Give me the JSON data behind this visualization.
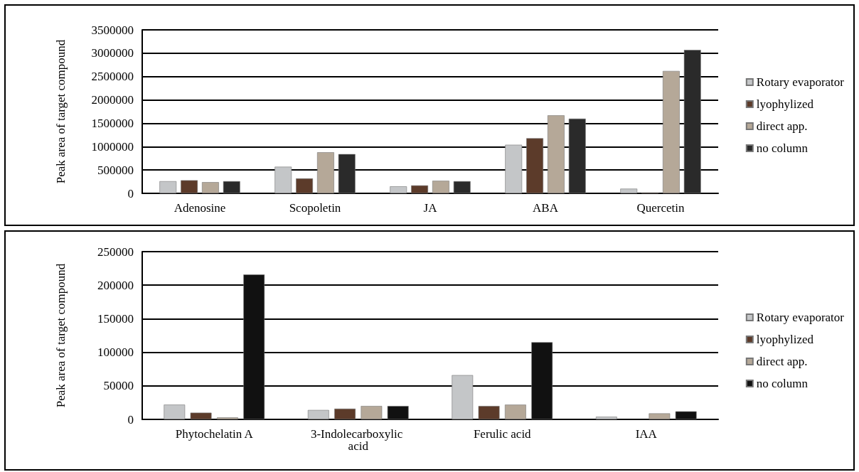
{
  "chart_data": [
    {
      "type": "bar",
      "ylabel": "Peak area of target compound",
      "categories": [
        "Adenosine",
        "Scopoletin",
        "JA",
        "ABA",
        "Quercetin"
      ],
      "series": [
        {
          "name": "Rotary evaporator",
          "color": "#c4c6c8",
          "values": [
            260000,
            570000,
            150000,
            1040000,
            100000
          ]
        },
        {
          "name": "lyophylized",
          "color": "#5c3b2a",
          "values": [
            280000,
            320000,
            170000,
            1180000,
            20000
          ]
        },
        {
          "name": "direct app.",
          "color": "#b5a898",
          "values": [
            240000,
            880000,
            270000,
            1670000,
            2620000
          ]
        },
        {
          "name": "no column",
          "color": "#2a2a2a",
          "values": [
            260000,
            840000,
            260000,
            1600000,
            3070000
          ]
        }
      ],
      "ylim": [
        0,
        3500000
      ],
      "yticks": [
        0,
        500000,
        1000000,
        1500000,
        2000000,
        2500000,
        3000000,
        3500000
      ],
      "grid": "y",
      "legend": "right"
    },
    {
      "type": "bar",
      "ylabel": "Peak area of target compound",
      "categories": [
        "Phytochelatin A",
        "3-Indolecarboxylic acid",
        "Ferulic acid",
        "IAA"
      ],
      "series": [
        {
          "name": "Rotary evaporator",
          "color": "#c4c6c8",
          "values": [
            22000,
            14000,
            66000,
            4000
          ]
        },
        {
          "name": "lyophylized",
          "color": "#5c3b2a",
          "values": [
            10000,
            16000,
            20000,
            null
          ]
        },
        {
          "name": "direct app.",
          "color": "#b5a898",
          "values": [
            3000,
            20000,
            22000,
            9000
          ]
        },
        {
          "name": "no column",
          "color": "#111111",
          "values": [
            216000,
            20000,
            115000,
            12000
          ]
        }
      ],
      "ylim": [
        0,
        250000
      ],
      "yticks": [
        0,
        50000,
        100000,
        150000,
        200000,
        250000
      ],
      "grid": "y",
      "legend": "right"
    }
  ]
}
